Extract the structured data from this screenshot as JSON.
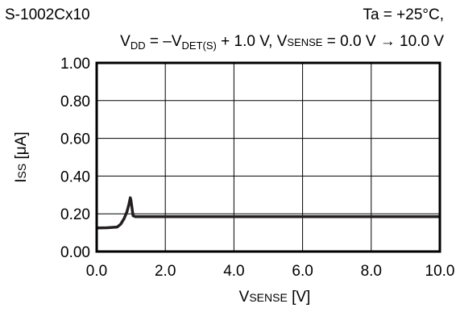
{
  "chart_data": {
    "type": "line",
    "title_left": "S-1002Cx10",
    "title_right": "Ta = +25°C,",
    "condition_parts": {
      "v1": "V",
      "v1_sub": "DD",
      "mid1": " = –V",
      "mid1_sub": "DET(S)",
      "mid2": " + 1.0 V, V",
      "mid2_sub": "SENSE",
      "tail": " = 0.0 V → 10.0 V"
    },
    "ylabel_main": "I",
    "ylabel_sub": "SS",
    "ylabel_unit": " [μA]",
    "xlabel_main": "V",
    "xlabel_sub": "SENSE",
    "xlabel_unit": " [V]",
    "xlim": [
      0.0,
      10.0
    ],
    "ylim": [
      0.0,
      1.0
    ],
    "x_ticks": [
      "0.0",
      "2.0",
      "4.0",
      "6.0",
      "8.0",
      "10.0"
    ],
    "y_ticks": [
      "0.00",
      "0.20",
      "0.40",
      "0.60",
      "0.80",
      "1.00"
    ],
    "grid": true,
    "series": [
      {
        "color": "#231f20",
        "x": [
          0.0,
          0.3,
          0.6,
          0.7,
          0.8,
          0.88,
          0.94,
          0.98,
          1.0,
          1.03,
          1.06,
          1.12,
          2.0,
          4.0,
          6.0,
          8.0,
          10.0
        ],
        "y": [
          0.125,
          0.126,
          0.13,
          0.145,
          0.175,
          0.21,
          0.25,
          0.285,
          0.27,
          0.23,
          0.19,
          0.185,
          0.185,
          0.185,
          0.185,
          0.185,
          0.185
        ]
      }
    ]
  }
}
